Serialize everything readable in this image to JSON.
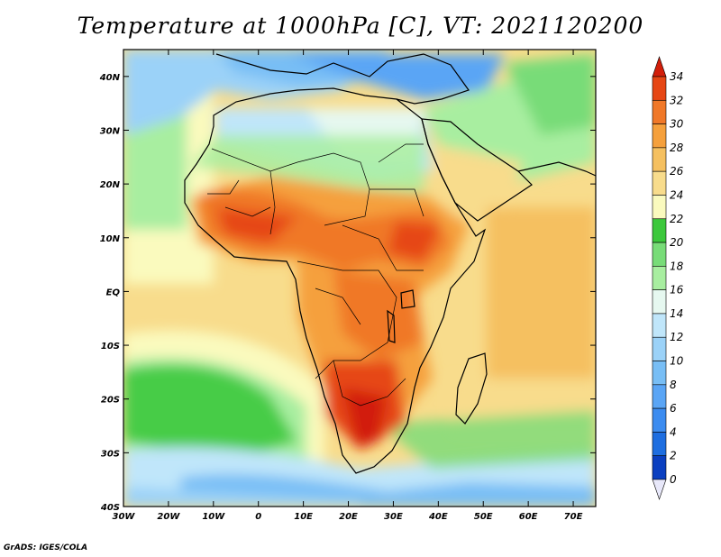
{
  "title": "Temperature at 1000hPa [C], VT: 2021120200",
  "footer": "GrADS: IGES/COLA",
  "map": {
    "lon_range": [
      -30,
      75
    ],
    "lat_range": [
      -40,
      45
    ],
    "lon_ticks": [
      {
        "value": -30,
        "label": "30W"
      },
      {
        "value": -20,
        "label": "20W"
      },
      {
        "value": -10,
        "label": "10W"
      },
      {
        "value": 0,
        "label": "0"
      },
      {
        "value": 10,
        "label": "10E"
      },
      {
        "value": 20,
        "label": "20E"
      },
      {
        "value": 30,
        "label": "30E"
      },
      {
        "value": 40,
        "label": "40E"
      },
      {
        "value": 50,
        "label": "50E"
      },
      {
        "value": 60,
        "label": "60E"
      },
      {
        "value": 70,
        "label": "70E"
      }
    ],
    "lat_ticks": [
      {
        "value": 40,
        "label": "40N"
      },
      {
        "value": 30,
        "label": "30N"
      },
      {
        "value": 20,
        "label": "20N"
      },
      {
        "value": 10,
        "label": "10N"
      },
      {
        "value": 0,
        "label": "EQ"
      },
      {
        "value": -10,
        "label": "10S"
      },
      {
        "value": -20,
        "label": "20S"
      },
      {
        "value": -30,
        "label": "30S"
      },
      {
        "value": -40,
        "label": "40S"
      }
    ]
  },
  "colorbar": {
    "levels": [
      "0",
      "2",
      "4",
      "6",
      "8",
      "10",
      "12",
      "14",
      "16",
      "18",
      "20",
      "22",
      "24",
      "26",
      "28",
      "30",
      "32",
      "34"
    ],
    "colors": [
      "#000080",
      "#0a3fc0",
      "#1e6ee0",
      "#3c8cf0",
      "#5aa5f5",
      "#78bef5",
      "#9bd2f8",
      "#c0e6fa",
      "#e6f8f0",
      "#a8eea0",
      "#78dc78",
      "#3cc83c",
      "#fafabe",
      "#f8dc8c",
      "#f5c060",
      "#f5a03c",
      "#f07828",
      "#e64614",
      "#d21e0a"
    ]
  }
}
